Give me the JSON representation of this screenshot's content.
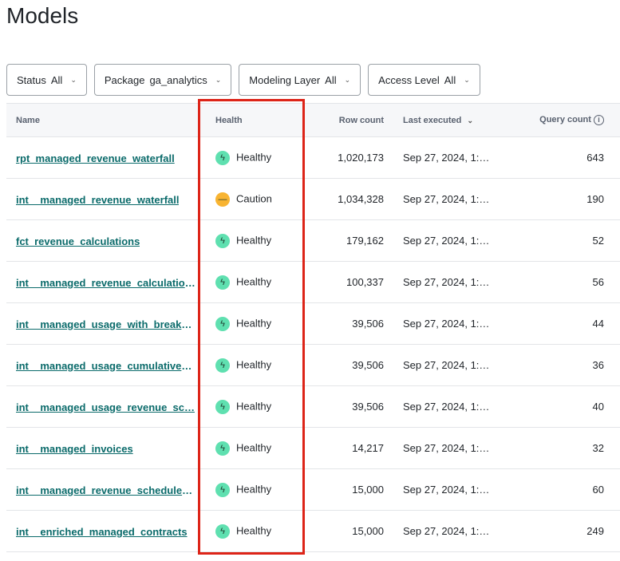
{
  "title": "Models",
  "filters": [
    {
      "label": "Status",
      "value": "All"
    },
    {
      "label": "Package",
      "value": "ga_analytics"
    },
    {
      "label": "Modeling Layer",
      "value": "All"
    },
    {
      "label": "Access Level",
      "value": "All"
    }
  ],
  "columns": {
    "name": "Name",
    "health": "Health",
    "row_count": "Row count",
    "last_executed": "Last executed",
    "query_count": "Query count"
  },
  "health_colors": {
    "Healthy": "#5fe0b0",
    "Caution": "#f8b432"
  },
  "rows": [
    {
      "name": "rpt_managed_revenue_waterfall",
      "health": "Healthy",
      "row_count": "1,020,173",
      "last_executed": "Sep 27, 2024, 1:…",
      "query_count": "643"
    },
    {
      "name": "int__managed_revenue_waterfall",
      "health": "Caution",
      "row_count": "1,034,328",
      "last_executed": "Sep 27, 2024, 1:…",
      "query_count": "190"
    },
    {
      "name": "fct_revenue_calculations",
      "health": "Healthy",
      "row_count": "179,162",
      "last_executed": "Sep 27, 2024, 1:…",
      "query_count": "52"
    },
    {
      "name": "int__managed_revenue_calculations",
      "health": "Healthy",
      "row_count": "100,337",
      "last_executed": "Sep 27, 2024, 1:…",
      "query_count": "56"
    },
    {
      "name": "int__managed_usage_with_breaka…",
      "health": "Healthy",
      "row_count": "39,506",
      "last_executed": "Sep 27, 2024, 1:…",
      "query_count": "44"
    },
    {
      "name": "int__managed_usage_cumulative_…",
      "health": "Healthy",
      "row_count": "39,506",
      "last_executed": "Sep 27, 2024, 1:…",
      "query_count": "36"
    },
    {
      "name": "int__managed_usage_revenue_sc…",
      "health": "Healthy",
      "row_count": "39,506",
      "last_executed": "Sep 27, 2024, 1:…",
      "query_count": "40"
    },
    {
      "name": "int__managed_invoices",
      "health": "Healthy",
      "row_count": "14,217",
      "last_executed": "Sep 27, 2024, 1:…",
      "query_count": "32"
    },
    {
      "name": "int__managed_revenue_schedule_…",
      "health": "Healthy",
      "row_count": "15,000",
      "last_executed": "Sep 27, 2024, 1:…",
      "query_count": "60"
    },
    {
      "name": "int__enriched_managed_contracts",
      "health": "Healthy",
      "row_count": "15,000",
      "last_executed": "Sep 27, 2024, 1:…",
      "query_count": "249"
    }
  ]
}
